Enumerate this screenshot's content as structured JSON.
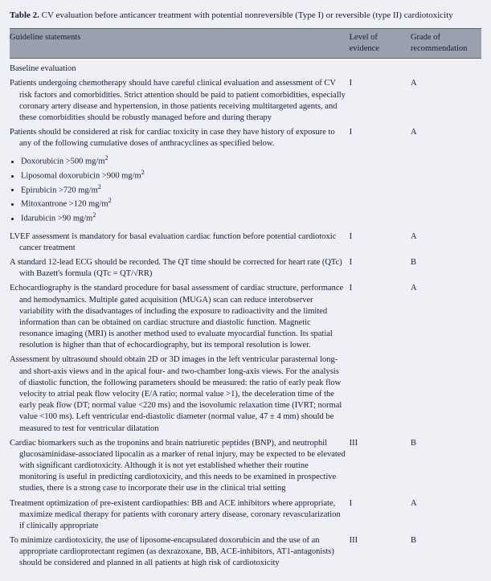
{
  "caption_label": "Table 2.",
  "caption_text": "CV evaluation before anticancer treatment with potential nonreversible (Type I) or reversible (type II) cardiotoxicity",
  "headers": {
    "col1": "Guideline statements",
    "col2": "Level of evidence",
    "col3": "Grade of recommendation"
  },
  "section_baseline": "Baseline evaluation",
  "rows": {
    "r1": {
      "text": "Patients undergoing chemotherapy should have careful clinical evaluation and assessment of CV risk factors and comorbidities. Strict attention should be paid to patient comorbidities, especially coronary artery disease and hypertension, in those patients receiving multitargeted agents, and these comorbidities should be robustly managed before and during therapy",
      "level": "I",
      "grade": "A"
    },
    "r2": {
      "text": "Patients should be considered at risk for cardiac toxicity in case they have history of exposure to any of the following cumulative doses of anthracyclines as specified below.",
      "level": "I",
      "grade": "A"
    },
    "drugs": {
      "d1": "Doxorubicin >500 mg/m",
      "d2": "Liposomal doxorubicin >900 mg/m",
      "d3": "Epirubicin >720 mg/m",
      "d4": "Mitoxantrone >120 mg/m",
      "d5": "Idarubicin >90 mg/m"
    },
    "r3": {
      "text": "LVEF assessment is mandatory for basal evaluation cardiac function before potential cardiotoxic cancer treatment",
      "level": "I",
      "grade": "A"
    },
    "r4": {
      "text": "A standard 12-lead ECG should be recorded. The QT time should be corrected for heart rate (QTc) with Bazett's formula (QTc = QT/√RR)",
      "level": "I",
      "grade": "B"
    },
    "r5": {
      "text": "Echocardiography is the standard procedure for basal assessment of cardiac structure, performance and hemodynamics. Multiple gated acquisition (MUGA) scan can reduce interobserver variability with the disadvantages of including the exposure to radioactivity and the limited information than can be obtained on cardiac structure and diastolic function. Magnetic resonance imaging (MRI) is another method used to evaluate myocardial function. Its spatial resolution is higher than that of echocardiography, but its temporal resolution is lower.",
      "level": "I",
      "grade": "A"
    },
    "r6": {
      "text": "Assessment by ultrasound should obtain 2D or 3D images in the left ventricular parasternal long- and short-axis views and in the apical four- and two-chamber long-axis views. For the analysis of diastolic function, the following parameters should be measured: the ratio of early peak flow velocity to atrial peak flow velocity (E/A ratio; normal value >1), the deceleration time of the early peak flow (DT; normal value <220 ms) and the isovolumic relaxation time (IVRT; normal value <100 ms). Left ventricular end-diastolic diameter (normal value, 47 ± 4 mm) should be measured to test for ventricular dilatation",
      "level": "",
      "grade": ""
    },
    "r7": {
      "text": "Cardiac biomarkers such as the troponins and brain natriuretic peptides (BNP), and neutrophil glucosaminidase-associated lipocalin as a marker of renal injury, may be expected to be elevated with significant cardiotoxicity. Although it is not yet established whether their routine monitoring is useful in predicting cardiotoxicity, and this needs to be examined in prospective studies, there is a strong case to incorporate their use in the clinical trial setting",
      "level": "III",
      "grade": "B"
    },
    "r8": {
      "text": "Treatment optimization of pre-existent cardiopathies: BB and ACE inhibitors where appropriate, maximize medical therapy for patients with coronary artery disease, coronary revascularization if clinically appropriate",
      "level": "I",
      "grade": "A"
    },
    "r9": {
      "text": "To minimize cardiotoxicity, the use of liposome-encapsulated doxorubicin and the use of an appropriate cardioprotectant regimen (as dexrazoxane, BB, ACE-inhibitors, AT1-antagonists) should be considered and planned in all patients at high risk of cardiotoxicity",
      "level": "III",
      "grade": "B"
    }
  },
  "colors": {
    "header_bg": "#9aa0ad",
    "body_bg": "#eef0f6",
    "text": "#1a1a3a",
    "rule": "#666666"
  },
  "typography": {
    "body_fontsize_pt": 8,
    "caption_fontsize_pt": 8.5,
    "family": "serif"
  }
}
